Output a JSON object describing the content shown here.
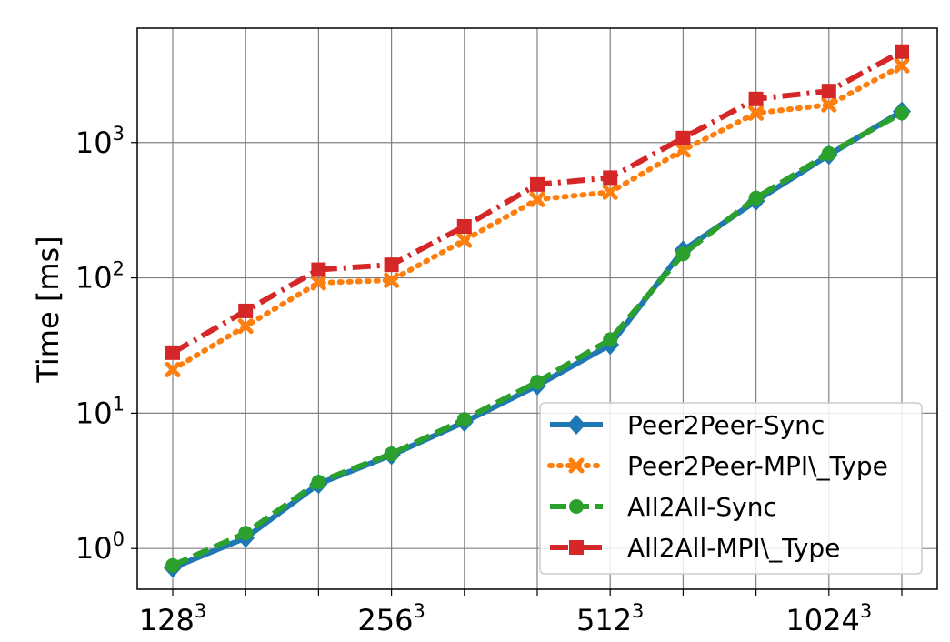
{
  "chart_data": {
    "type": "line",
    "ylabel": "Time [ms]",
    "xlabel": "",
    "y_scale": "log",
    "ylim": [
      0.5,
      7000
    ],
    "grid": true,
    "legend_position": "lower-right",
    "x_major_tick_labels": [
      {
        "base": "128",
        "sup": "3"
      },
      {
        "base": "256",
        "sup": "3"
      },
      {
        "base": "512",
        "sup": "3"
      },
      {
        "base": "1024",
        "sup": "3"
      }
    ],
    "y_tick_labels": [
      {
        "base": "10",
        "sup": "0",
        "value": 1
      },
      {
        "base": "10",
        "sup": "1",
        "value": 10
      },
      {
        "base": "10",
        "sup": "2",
        "value": 100
      },
      {
        "base": "10",
        "sup": "3",
        "value": 1000
      }
    ],
    "series": [
      {
        "name": "Peer2Peer-Sync",
        "color": "#1f77b4",
        "dash": "solid",
        "marker": "diamond",
        "values": [
          0.72,
          1.2,
          3.0,
          4.9,
          8.6,
          16,
          32,
          160,
          370,
          810,
          1700
        ]
      },
      {
        "name": "Peer2Peer-MPI\\_Type",
        "color": "#ff7f0e",
        "dash": "dotted",
        "marker": "x",
        "values": [
          21,
          44,
          92,
          96,
          190,
          380,
          430,
          880,
          1650,
          1900,
          3700
        ]
      },
      {
        "name": "All2All-Sync",
        "color": "#2ca02c",
        "dash": "dashed",
        "marker": "circle",
        "values": [
          0.75,
          1.3,
          3.1,
          5.0,
          9.0,
          17,
          35,
          150,
          390,
          830,
          1650
        ]
      },
      {
        "name": "All2All-MPI\\_Type",
        "color": "#d62728",
        "dash": "dashdot",
        "marker": "square",
        "values": [
          28,
          57,
          115,
          125,
          240,
          490,
          550,
          1080,
          2100,
          2400,
          4700
        ]
      }
    ]
  }
}
